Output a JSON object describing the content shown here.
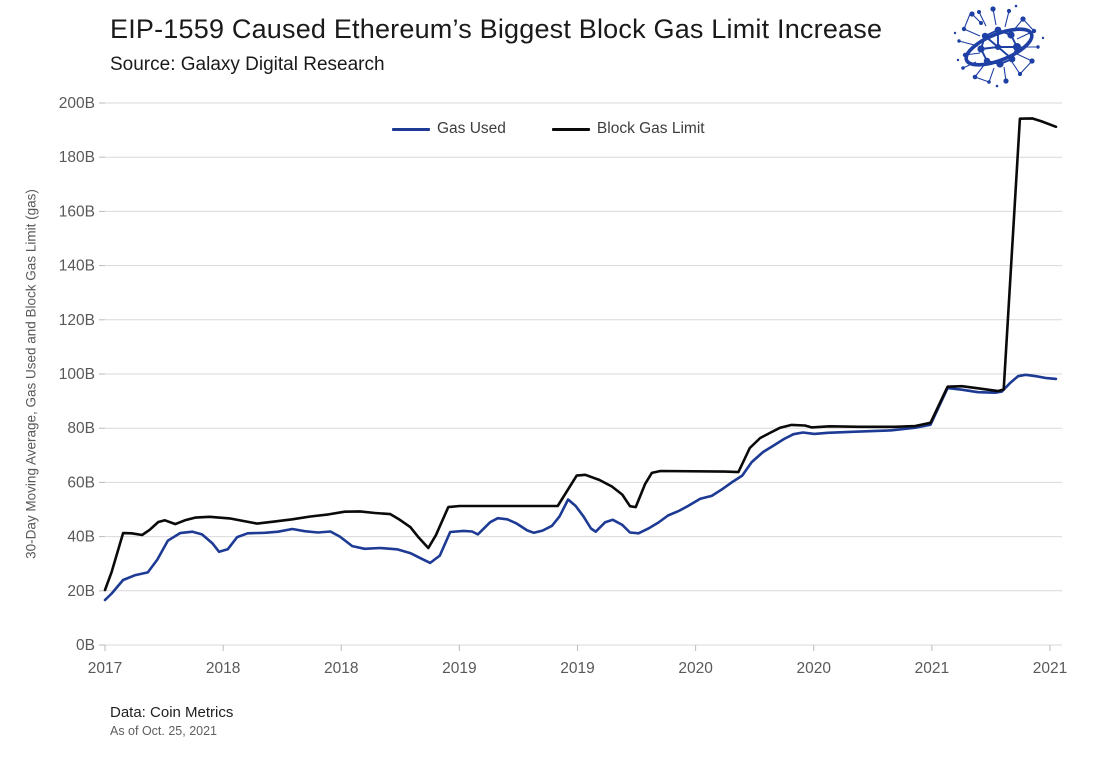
{
  "header": {
    "title": "EIP-1559 Caused Ethereum’s Biggest Block Gas Limit Increase",
    "subtitle": "Source: Galaxy Digital Research"
  },
  "logo": {
    "name": "galaxy-digital-network-logo",
    "color": "#1e3fa4"
  },
  "footer": {
    "data_source": "Data: Coin Metrics",
    "as_of": "As of Oct. 25, 2021"
  },
  "chart_data": {
    "type": "line",
    "title": "EIP-1559 Caused Ethereum’s Biggest Block Gas Limit Increase",
    "xlabel": "",
    "ylabel": "30-Day Moving Average, Gas Used and Block Gas Limit (gas)",
    "ylim": [
      0,
      200
    ],
    "ytick_step": 20,
    "ytick_labels": [
      "0B",
      "20B",
      "40B",
      "60B",
      "80B",
      "100B",
      "120B",
      "140B",
      "160B",
      "180B",
      "200B"
    ],
    "xtick_labels": [
      "2017",
      "2018",
      "2018",
      "2019",
      "2019",
      "2020",
      "2020",
      "2021",
      "2021"
    ],
    "grid": "horizontal",
    "grid_color": "#d9d9d9",
    "axis_text_color": "#595959",
    "x_encoding": "fraction_0_to_1_of_x_axis",
    "legend": {
      "position": "top-center",
      "entries": [
        {
          "name": "Gas Used",
          "color": "#1d3a94"
        },
        {
          "name": "Block Gas Limit",
          "color": "#0a0a0a"
        }
      ]
    },
    "series": [
      {
        "name": "Gas Used",
        "color": "#1d3a94",
        "points": [
          [
            0,
            16.6
          ],
          [
            0.007,
            19
          ],
          [
            0.019,
            24
          ],
          [
            0.032,
            25.8
          ],
          [
            0.045,
            26.8
          ],
          [
            0.055,
            31.5
          ],
          [
            0.066,
            38.5
          ],
          [
            0.079,
            41.3
          ],
          [
            0.092,
            41.8
          ],
          [
            0.102,
            40.8
          ],
          [
            0.113,
            37.5
          ],
          [
            0.12,
            34.4
          ],
          [
            0.129,
            35.3
          ],
          [
            0.139,
            39.8
          ],
          [
            0.15,
            41.2
          ],
          [
            0.168,
            41.4
          ],
          [
            0.182,
            41.8
          ],
          [
            0.197,
            42.8
          ],
          [
            0.21,
            42
          ],
          [
            0.224,
            41.5
          ],
          [
            0.237,
            41.9
          ],
          [
            0.247,
            40
          ],
          [
            0.26,
            36.5
          ],
          [
            0.273,
            35.5
          ],
          [
            0.289,
            35.8
          ],
          [
            0.307,
            35.3
          ],
          [
            0.321,
            33.9
          ],
          [
            0.333,
            31.8
          ],
          [
            0.342,
            30.3
          ],
          [
            0.352,
            33
          ],
          [
            0.363,
            41.7
          ],
          [
            0.377,
            42.1
          ],
          [
            0.386,
            41.9
          ],
          [
            0.392,
            40.8
          ],
          [
            0.405,
            45.3
          ],
          [
            0.413,
            46.8
          ],
          [
            0.423,
            46.4
          ],
          [
            0.433,
            44.8
          ],
          [
            0.444,
            42.3
          ],
          [
            0.451,
            41.4
          ],
          [
            0.46,
            42.2
          ],
          [
            0.47,
            44
          ],
          [
            0.478,
            47.5
          ],
          [
            0.487,
            53.7
          ],
          [
            0.495,
            51.3
          ],
          [
            0.503,
            47.5
          ],
          [
            0.511,
            43
          ],
          [
            0.516,
            41.8
          ],
          [
            0.526,
            45.3
          ],
          [
            0.534,
            46.2
          ],
          [
            0.544,
            44.3
          ],
          [
            0.552,
            41.5
          ],
          [
            0.561,
            41.2
          ],
          [
            0.571,
            42.9
          ],
          [
            0.582,
            45.2
          ],
          [
            0.592,
            47.8
          ],
          [
            0.603,
            49.4
          ],
          [
            0.613,
            51.3
          ],
          [
            0.626,
            54
          ],
          [
            0.638,
            55
          ],
          [
            0.649,
            57.5
          ],
          [
            0.659,
            60
          ],
          [
            0.67,
            62.5
          ],
          [
            0.68,
            67.5
          ],
          [
            0.692,
            71.2
          ],
          [
            0.704,
            73.8
          ],
          [
            0.714,
            76
          ],
          [
            0.724,
            77.8
          ],
          [
            0.734,
            78.4
          ],
          [
            0.746,
            77.9
          ],
          [
            0.76,
            78.3
          ],
          [
            0.789,
            78.7
          ],
          [
            0.826,
            79.2
          ],
          [
            0.852,
            80.2
          ],
          [
            0.868,
            81.3
          ],
          [
            0.886,
            94.8
          ],
          [
            0.901,
            94.2
          ],
          [
            0.918,
            93.3
          ],
          [
            0.936,
            93.1
          ],
          [
            0.943,
            93.5
          ],
          [
            0.952,
            96.8
          ],
          [
            0.96,
            99.2
          ],
          [
            0.968,
            99.7
          ],
          [
            0.979,
            99.2
          ],
          [
            0.99,
            98.5
          ],
          [
            1,
            98.2
          ]
        ]
      },
      {
        "name": "Block Gas Limit",
        "color": "#0a0a0a",
        "points": [
          [
            0,
            20.3
          ],
          [
            0.007,
            27
          ],
          [
            0.019,
            41.3
          ],
          [
            0.028,
            41.2
          ],
          [
            0.039,
            40.6
          ],
          [
            0.047,
            42.5
          ],
          [
            0.056,
            45.4
          ],
          [
            0.063,
            46
          ],
          [
            0.074,
            44.6
          ],
          [
            0.084,
            46
          ],
          [
            0.095,
            47
          ],
          [
            0.11,
            47.3
          ],
          [
            0.131,
            46.7
          ],
          [
            0.16,
            44.8
          ],
          [
            0.179,
            45.6
          ],
          [
            0.197,
            46.4
          ],
          [
            0.216,
            47.4
          ],
          [
            0.235,
            48.2
          ],
          [
            0.252,
            49.2
          ],
          [
            0.268,
            49.3
          ],
          [
            0.284,
            48.7
          ],
          [
            0.3,
            48.3
          ],
          [
            0.31,
            46.2
          ],
          [
            0.321,
            43.5
          ],
          [
            0.329,
            40
          ],
          [
            0.34,
            35.8
          ],
          [
            0.348,
            40.5
          ],
          [
            0.361,
            50.9
          ],
          [
            0.373,
            51.3
          ],
          [
            0.476,
            51.3
          ],
          [
            0.496,
            62.5
          ],
          [
            0.505,
            62.8
          ],
          [
            0.52,
            60.9
          ],
          [
            0.533,
            58.5
          ],
          [
            0.544,
            55.5
          ],
          [
            0.552,
            51.2
          ],
          [
            0.558,
            50.9
          ],
          [
            0.568,
            59.5
          ],
          [
            0.575,
            63.5
          ],
          [
            0.584,
            64.2
          ],
          [
            0.652,
            64
          ],
          [
            0.666,
            63.8
          ],
          [
            0.678,
            72.7
          ],
          [
            0.689,
            76.4
          ],
          [
            0.701,
            78.6
          ],
          [
            0.71,
            80.2
          ],
          [
            0.722,
            81.2
          ],
          [
            0.736,
            81
          ],
          [
            0.743,
            80.3
          ],
          [
            0.762,
            80.7
          ],
          [
            0.794,
            80.5
          ],
          [
            0.831,
            80.5
          ],
          [
            0.852,
            80.8
          ],
          [
            0.868,
            82
          ],
          [
            0.886,
            95.3
          ],
          [
            0.901,
            95.5
          ],
          [
            0.92,
            94.6
          ],
          [
            0.939,
            93.7
          ],
          [
            0.945,
            94.3
          ],
          [
            0.962,
            194.2
          ],
          [
            0.975,
            194.3
          ],
          [
            0.985,
            193.2
          ],
          [
            1,
            191.2
          ]
        ]
      }
    ]
  }
}
